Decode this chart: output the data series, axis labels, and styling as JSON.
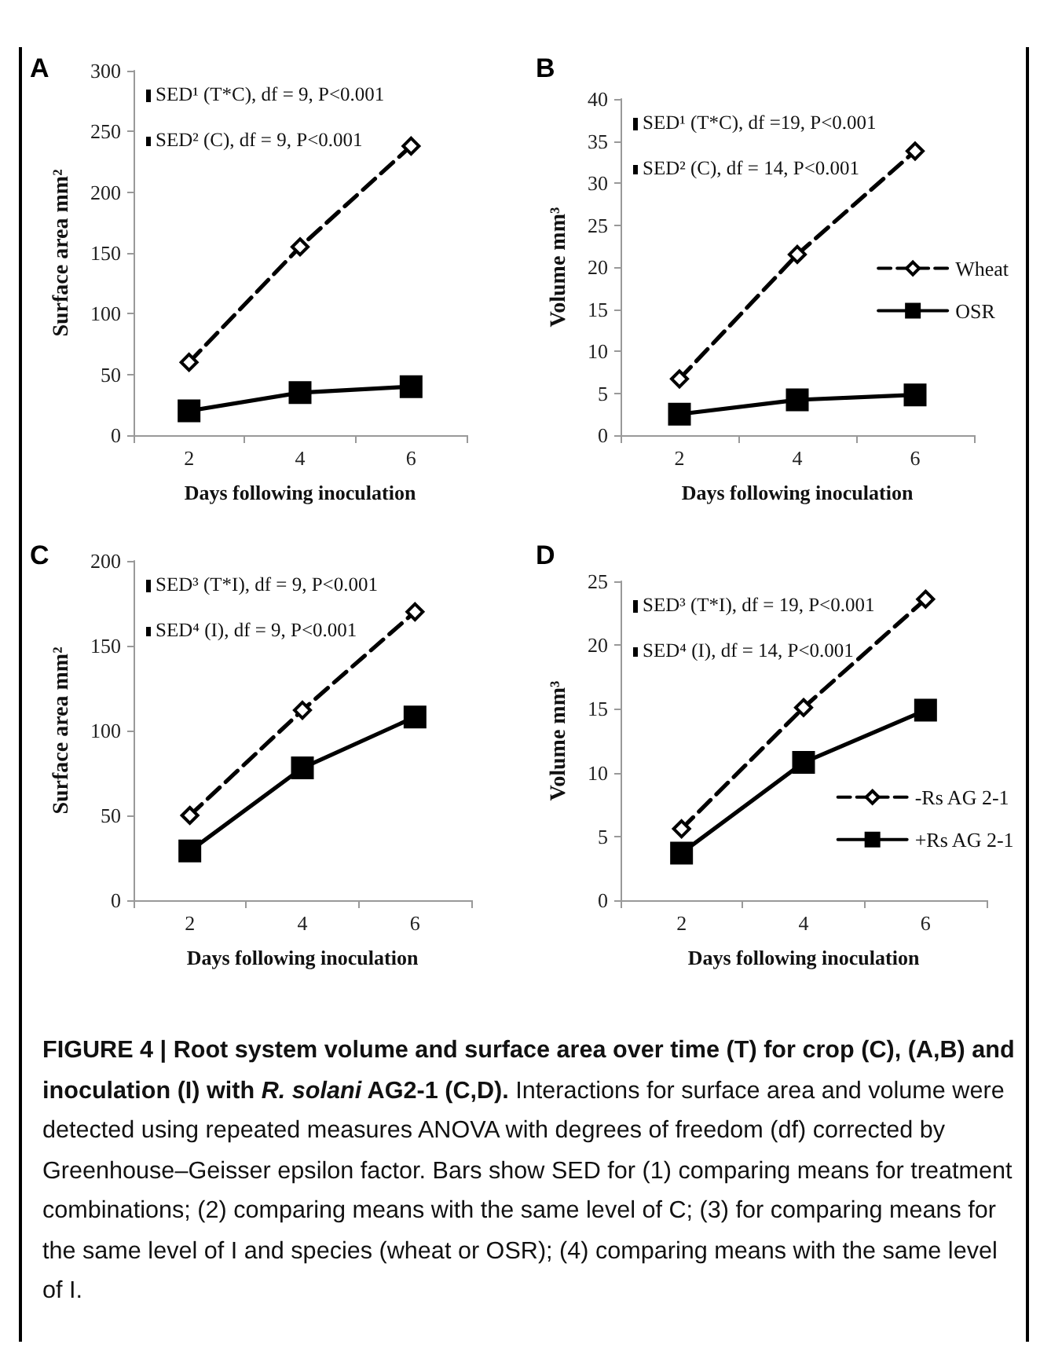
{
  "chart_data": [
    {
      "type": "line",
      "title": "A",
      "xlabel": "Days following inoculation",
      "ylabel": "Surface area mm²",
      "categories": [
        "2",
        "4",
        "6"
      ],
      "series": [
        {
          "color": "#000000",
          "marker": "diamond",
          "line_style": "dashed",
          "values": [
            60,
            155,
            238
          ]
        },
        {
          "color": "#000000",
          "marker": "square",
          "line_style": "solid",
          "values": [
            20,
            35,
            40
          ]
        }
      ],
      "ylim": [
        0,
        300
      ],
      "yticks": [
        0,
        50,
        100,
        150,
        200,
        250,
        300
      ],
      "grid": false,
      "legend": false,
      "annotations": [
        "SED¹ (T*C), df = 9, P<0.001",
        "SED² (C), df = 9, P<0.001"
      ]
    },
    {
      "type": "line",
      "title": "B",
      "xlabel": "Days following inoculation",
      "ylabel": "Volume mm³",
      "categories": [
        "2",
        "4",
        "6"
      ],
      "series": [
        {
          "name": "Wheat",
          "color": "#000000",
          "marker": "diamond",
          "line_style": "dashed",
          "values": [
            6.7,
            21.5,
            33.8
          ]
        },
        {
          "name": "OSR",
          "color": "#000000",
          "marker": "square",
          "line_style": "solid",
          "values": [
            2.5,
            4.2,
            4.8
          ]
        }
      ],
      "ylim": [
        0,
        40
      ],
      "yticks": [
        0,
        5,
        10,
        15,
        20,
        25,
        30,
        35,
        40
      ],
      "grid": false,
      "legend": "right",
      "annotations": [
        "SED¹ (T*C), df =19, P<0.001",
        "SED² (C), df = 14, P<0.001"
      ]
    },
    {
      "type": "line",
      "title": "C",
      "xlabel": "Days following inoculation",
      "ylabel": "Surface area mm²",
      "categories": [
        "2",
        "4",
        "6"
      ],
      "series": [
        {
          "color": "#000000",
          "marker": "diamond",
          "line_style": "dashed",
          "values": [
            50,
            112,
            170
          ]
        },
        {
          "color": "#000000",
          "marker": "square",
          "line_style": "solid",
          "values": [
            29,
            78,
            108
          ]
        }
      ],
      "ylim": [
        0,
        200
      ],
      "yticks": [
        0,
        50,
        100,
        150,
        200
      ],
      "grid": false,
      "legend": false,
      "annotations": [
        "SED³ (T*I), df = 9, P<0.001",
        "SED⁴ (I), df = 9, P<0.001"
      ]
    },
    {
      "type": "line",
      "title": "D",
      "xlabel": "Days following inoculation",
      "ylabel": "Volume mm³",
      "categories": [
        "2",
        "4",
        "6"
      ],
      "series": [
        {
          "name": "-Rs AG 2-1",
          "color": "#000000",
          "marker": "diamond",
          "line_style": "dashed",
          "values": [
            5.6,
            15.1,
            23.6
          ]
        },
        {
          "name": "+Rs AG 2-1",
          "color": "#000000",
          "marker": "square",
          "line_style": "solid",
          "values": [
            3.7,
            10.8,
            14.9
          ]
        }
      ],
      "ylim": [
        0,
        25
      ],
      "yticks": [
        0,
        5,
        10,
        15,
        20,
        25
      ],
      "grid": false,
      "legend": "bottom right",
      "annotations": [
        "SED³ (T*I), df = 19, P<0.001",
        "SED⁴ (I), df = 14, P<0.001"
      ]
    },
    {
      "type": "other",
      "annotations": [
        "FIGURE 4 | Root system volume and surface area over time (T) for crop (C), (A,B) and inoculation (I) with ",
        "R. solani",
        " AG2-1 (C,D).",
        " Interactions for surface area and volume were detected using repeated measures ANOVA with degrees of freedom (df) corrected by Greenhouse–Geisser epsilon factor. Bars show SED for (1) comparing means for treatment combinations; (2) comparing means with the same level of C; (3) for comparing means for the same level of I and species (wheat or OSR); (4) comparing means with the same level of I."
      ]
    }
  ]
}
